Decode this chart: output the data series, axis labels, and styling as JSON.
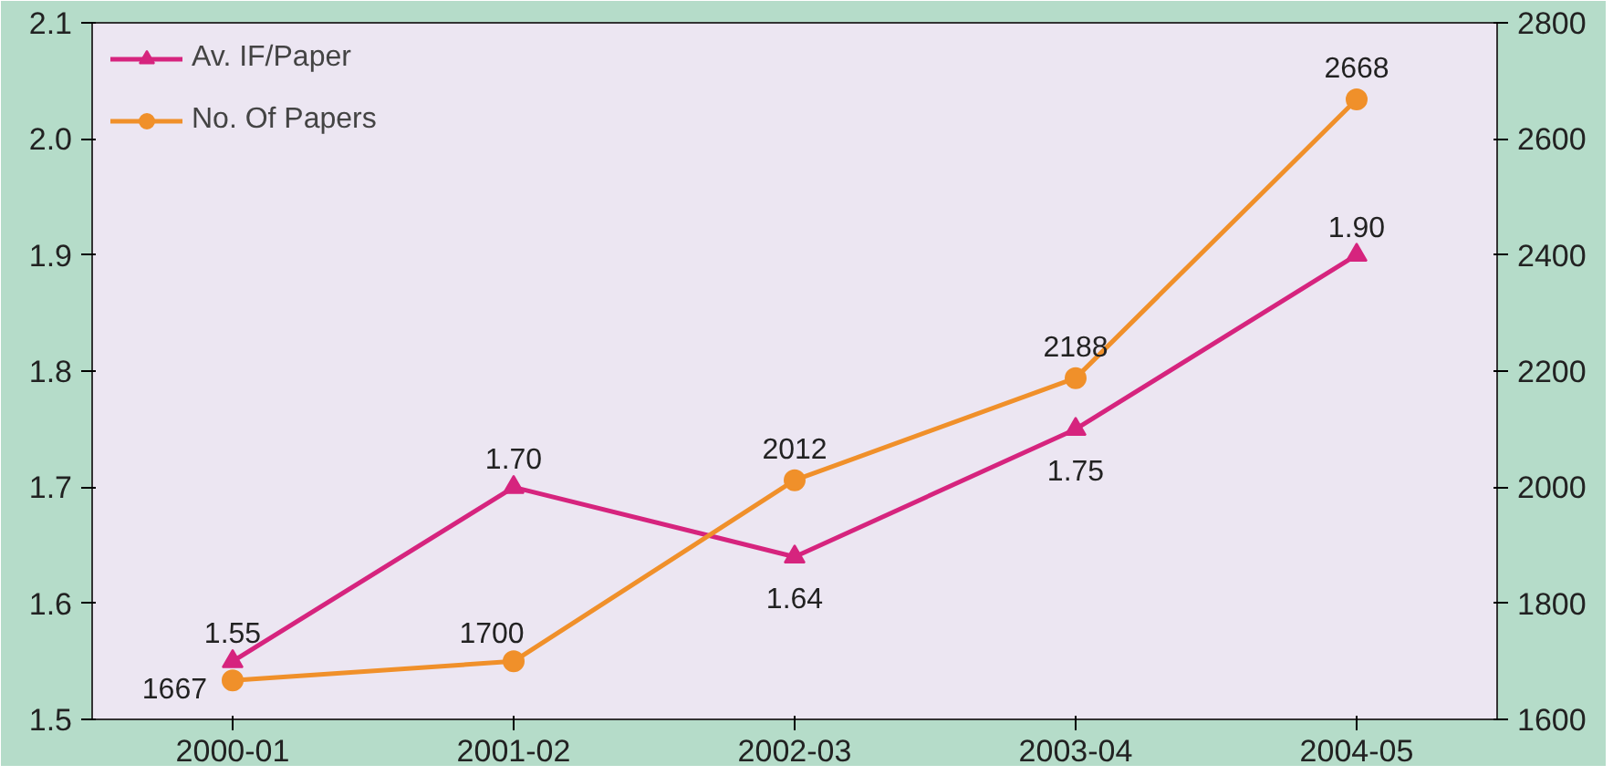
{
  "chart_data": {
    "type": "line",
    "categories": [
      "2000-01",
      "2001-02",
      "2002-03",
      "2003-04",
      "2004-05"
    ],
    "series": [
      {
        "name": "Av. IF/Paper",
        "color": "#d6247e",
        "marker": "triangle",
        "values": [
          1.55,
          1.7,
          1.64,
          1.75,
          1.9
        ],
        "value_labels": [
          "1.55",
          "1.70",
          "1.64",
          "1.75",
          "1.90"
        ]
      },
      {
        "name": "No. Of Papers",
        "color": "#f0902a",
        "marker": "circle",
        "axis": "y2",
        "values": [
          1667,
          1700,
          2012,
          2188,
          2668
        ],
        "value_labels": [
          "1667",
          "1700",
          "2012",
          "2188",
          "2668"
        ]
      }
    ],
    "ylim": [
      1.5,
      2.1
    ],
    "yticks": [
      {
        "value": 1.5,
        "label": "1.5"
      },
      {
        "value": 1.6,
        "label": "1.6"
      },
      {
        "value": 1.7,
        "label": "1.7"
      },
      {
        "value": 1.8,
        "label": "1.8"
      },
      {
        "value": 1.9,
        "label": "1.9"
      },
      {
        "value": 2.0,
        "label": "2.0"
      },
      {
        "value": 2.1,
        "label": "2.1"
      }
    ],
    "y2lim": [
      1600,
      2800
    ],
    "y2ticks": [
      1600,
      1800,
      2000,
      2200,
      2400,
      2600,
      2800
    ],
    "grid": false,
    "legend": "top left"
  }
}
